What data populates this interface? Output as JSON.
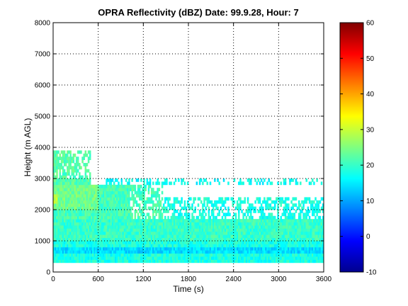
{
  "chart_data": {
    "type": "heatmap",
    "title": "OPRA Reflectivity (dBZ)  Date: 99.9.28, Hour: 7",
    "xlabel": "Time (s)",
    "ylabel": "Height (m AGL)",
    "xlim": [
      0,
      3600
    ],
    "ylim": [
      0,
      8000
    ],
    "x_ticks": [
      "0",
      "600",
      "1200",
      "1800",
      "2400",
      "3000",
      "3600"
    ],
    "y_ticks": [
      "0",
      "1000",
      "2000",
      "3000",
      "4000",
      "5000",
      "6000",
      "7000",
      "8000"
    ],
    "grid": true,
    "colorbar": {
      "range": [
        -10,
        60
      ],
      "ticks": [
        "-10",
        "0",
        "10",
        "20",
        "30",
        "40",
        "50",
        "60"
      ],
      "colormap": "jet",
      "placement": "right"
    },
    "time_step_s": 20,
    "height_step_m": 100,
    "data_summary": [
      {
        "height_range_m": [
          0,
          300
        ],
        "time_range_s": [
          0,
          3600
        ],
        "dbz": null
      },
      {
        "height_range_m": [
          300,
          1000
        ],
        "time_range_s": [
          0,
          3600
        ],
        "dbz": 18
      },
      {
        "height_range_m": [
          600,
          800
        ],
        "time_range_s": [
          0,
          3600
        ],
        "dbz": 14
      },
      {
        "height_range_m": [
          1000,
          1700
        ],
        "time_range_s": [
          0,
          3600
        ],
        "dbz": 20
      },
      {
        "height_range_m": [
          1700,
          2800
        ],
        "time_range_s": [
          0,
          1450
        ],
        "dbz": 21
      },
      {
        "height_range_m": [
          2000,
          2800
        ],
        "time_range_s": [
          0,
          600
        ],
        "dbz": 24
      },
      {
        "height_range_m": [
          2200,
          2500
        ],
        "time_range_s": [
          0,
          60
        ],
        "dbz": 30
      },
      {
        "height_range_m": [
          2800,
          3900
        ],
        "time_range_s": [
          0,
          500
        ],
        "dbz": 22
      },
      {
        "height_range_m": [
          1700,
          2400
        ],
        "time_range_s": [
          1450,
          3600
        ],
        "dbz": 18
      },
      {
        "height_range_m": [
          2800,
          3000
        ],
        "time_range_s": [
          700,
          3600
        ],
        "dbz": 17
      }
    ]
  }
}
